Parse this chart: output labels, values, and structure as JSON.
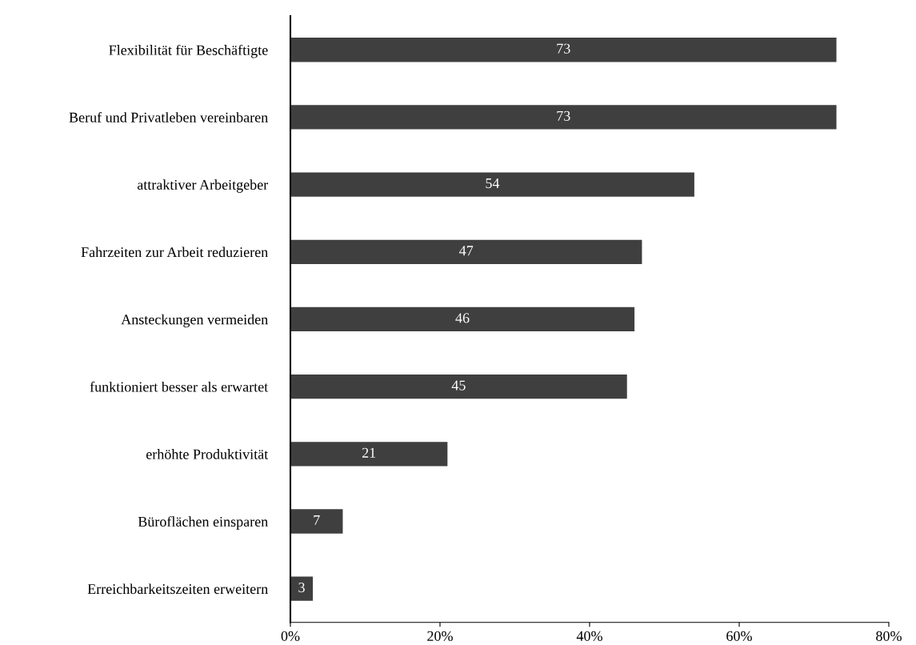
{
  "chart_data": {
    "type": "bar",
    "orientation": "horizontal",
    "categories": [
      "Flexibilität für Beschäftigte",
      "Beruf und Privatleben vereinbaren",
      "attraktiver Arbeitgeber",
      "Fahrzeiten zur Arbeit reduzieren",
      "Ansteckungen vermeiden",
      "funktioniert besser als erwartet",
      "erhöhte Produktivität",
      "Büroflächen einsparen",
      "Erreichbarkeitszeiten erweitern"
    ],
    "values": [
      73,
      73,
      54,
      47,
      46,
      45,
      21,
      7,
      3
    ],
    "color": "#3f3f3f",
    "xlim": [
      0,
      80
    ],
    "xticks": [
      {
        "value": 0,
        "label": "0%"
      },
      {
        "value": 20,
        "label": "20%"
      },
      {
        "value": 40,
        "label": "40%"
      },
      {
        "value": 60,
        "label": "60%"
      },
      {
        "value": 80,
        "label": "80%"
      }
    ],
    "data_labels": true,
    "grid": false,
    "legend": false
  }
}
